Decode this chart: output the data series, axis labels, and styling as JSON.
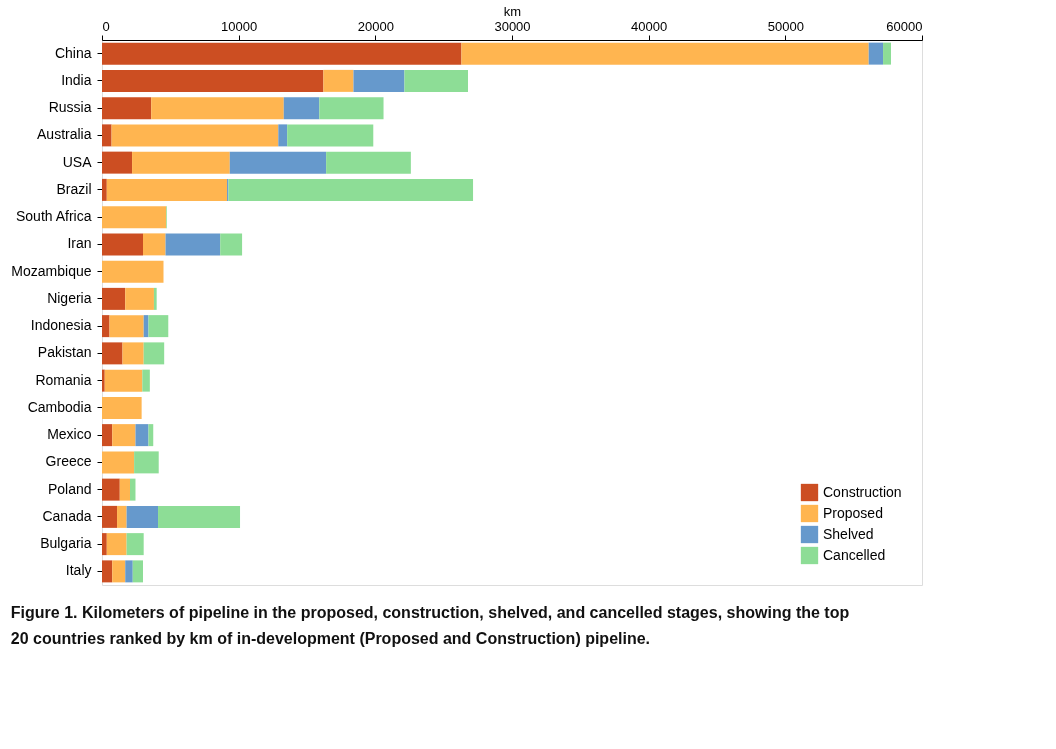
{
  "chart_data": {
    "type": "bar",
    "orientation": "horizontal",
    "stacked": true,
    "xlabel": "km",
    "categories": [
      "China",
      "India",
      "Russia",
      "Australia",
      "USA",
      "Brazil",
      "South Africa",
      "Iran",
      "Mozambique",
      "Nigeria",
      "Indonesia",
      "Pakistan",
      "Romania",
      "Cambodia",
      "Mexico",
      "Greece",
      "Poland",
      "Canada",
      "Bulgaria",
      "Italy"
    ],
    "series": [
      {
        "name": "Construction",
        "color": "#cc4e22",
        "values": [
          26300,
          16200,
          3600,
          700,
          2200,
          350,
          0,
          3000,
          0,
          1700,
          550,
          1500,
          200,
          0,
          750,
          0,
          1300,
          1100,
          350,
          750
        ]
      },
      {
        "name": "Proposed",
        "color": "#ffb550",
        "values": [
          29800,
          2200,
          9700,
          12200,
          7150,
          8800,
          4700,
          1650,
          4500,
          2100,
          2500,
          1550,
          2750,
          2900,
          1700,
          2350,
          750,
          700,
          1450,
          950
        ]
      },
      {
        "name": "Shelved",
        "color": "#6699cc",
        "values": [
          1050,
          3730,
          2600,
          650,
          7050,
          100,
          0,
          4000,
          0,
          0,
          350,
          0,
          0,
          0,
          950,
          0,
          0,
          2300,
          0,
          550
        ]
      },
      {
        "name": "Cancelled",
        "color": "#8ddd96",
        "values": [
          580,
          4650,
          4700,
          6300,
          6200,
          17900,
          50,
          1600,
          0,
          200,
          1450,
          1500,
          550,
          0,
          350,
          1800,
          400,
          6000,
          1250,
          750
        ]
      }
    ],
    "xlim": [
      0,
      60000
    ],
    "xticks": [
      0,
      10000,
      20000,
      30000,
      40000,
      50000,
      60000
    ],
    "grid": false,
    "legend": "bottom right",
    "annotations": [
      "Figure 1. Kilometers of pipeline in the proposed, construction, shelved, and cancelled stages, showing the top 20 countries ranked by km of in-development (Proposed and Construction) pipeline."
    ]
  }
}
